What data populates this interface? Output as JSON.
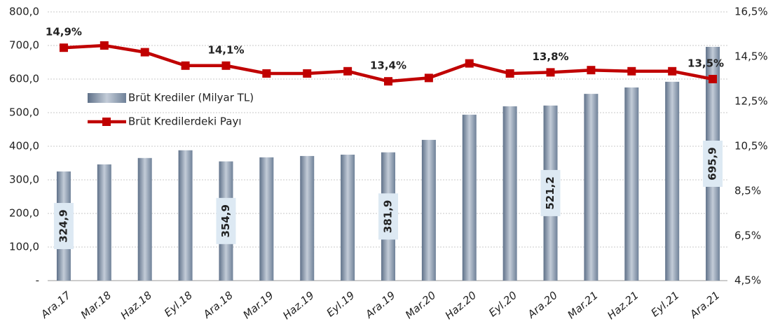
{
  "chart_data": {
    "type": "bar-line",
    "categories": [
      "Ara.17",
      "Mar.18",
      "Haz.18",
      "Eyl.18",
      "Ara.18",
      "Mar.19",
      "Haz.19",
      "Eyl.19",
      "Ara.19",
      "Mar.20",
      "Haz.20",
      "Eyl.20",
      "Ara.20",
      "Mar.21",
      "Haz.21",
      "Eyl.21",
      "Ara.21"
    ],
    "series": [
      {
        "name": "Brüt Krediler (Milyar TL)",
        "type": "bar",
        "color": "#8597ad",
        "values": [
          324.9,
          346,
          365,
          388,
          354.9,
          367,
          371,
          375,
          381.9,
          419,
          494,
          519,
          521.2,
          556,
          575,
          592,
          695.9
        ],
        "value_labels": [
          "324,9",
          null,
          null,
          null,
          "354,9",
          null,
          null,
          null,
          "381,9",
          null,
          null,
          null,
          "521,2",
          null,
          null,
          null,
          "695,9"
        ]
      },
      {
        "name": "Brüt Kredilerdeki Payı",
        "type": "line",
        "axis": "y2",
        "color": "#c00000",
        "values": [
          14.9,
          15.0,
          14.7,
          14.1,
          14.1,
          13.75,
          13.75,
          13.85,
          13.4,
          13.55,
          14.2,
          13.75,
          13.8,
          13.9,
          13.85,
          13.85,
          13.5
        ],
        "value_labels": [
          "14,9%",
          null,
          null,
          null,
          "14,1%",
          null,
          null,
          null,
          "13,4%",
          null,
          null,
          null,
          "13,8%",
          null,
          null,
          null,
          "13,5%"
        ]
      }
    ],
    "ylim": [
      0,
      800
    ],
    "yticks": [
      {
        "value": 0,
        "label": "-"
      },
      {
        "value": 100,
        "label": "100,0"
      },
      {
        "value": 200,
        "label": "200,0"
      },
      {
        "value": 300,
        "label": "300,0"
      },
      {
        "value": 400,
        "label": "400,0"
      },
      {
        "value": 500,
        "label": "500,0"
      },
      {
        "value": 600,
        "label": "600,0"
      },
      {
        "value": 700,
        "label": "700,0"
      },
      {
        "value": 800,
        "label": "800,0"
      }
    ],
    "y2lim": [
      4.5,
      16.5
    ],
    "y2ticks": [
      {
        "value": 4.5,
        "label": "4,5%"
      },
      {
        "value": 6.5,
        "label": "6,5%"
      },
      {
        "value": 8.5,
        "label": "8,5%"
      },
      {
        "value": 10.5,
        "label": "10,5%"
      },
      {
        "value": 12.5,
        "label": "12,5%"
      },
      {
        "value": 14.5,
        "label": "14,5%"
      },
      {
        "value": 16.5,
        "label": "16,5%"
      }
    ],
    "grid": true,
    "legend": "upper-left"
  }
}
